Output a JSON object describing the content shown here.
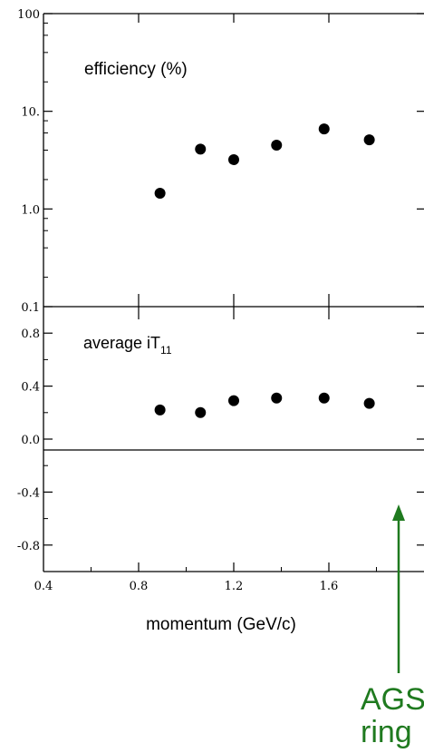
{
  "chart_data": [
    {
      "type": "scatter",
      "panel": "top",
      "label": "efficiency (%)",
      "yscale": "log",
      "ylim": [
        0.1,
        100
      ],
      "yticks": [
        "0.1",
        "1.0",
        "10.",
        "100"
      ],
      "xlim": [
        0.4,
        2.0
      ],
      "x": [
        0.89,
        1.06,
        1.2,
        1.38,
        1.58,
        1.77
      ],
      "y": [
        1.45,
        4.1,
        3.2,
        4.5,
        6.6,
        5.1
      ]
    },
    {
      "type": "scatter",
      "panel": "bottom",
      "label_main": "average iT",
      "label_sub": "11",
      "ylim": [
        -1.0,
        1.0
      ],
      "yticks": [
        "-0.8",
        "-0.4",
        "0.0",
        "0.4",
        "0.8"
      ],
      "xlim": [
        0.4,
        2.0
      ],
      "xticks": [
        "0.4",
        "0.8",
        "1.2",
        "1.6"
      ],
      "xlabel": "momentum  (GeV/c)",
      "x": [
        0.89,
        1.06,
        1.2,
        1.38,
        1.58,
        1.77
      ],
      "y": [
        0.22,
        0.2,
        0.29,
        0.31,
        0.31,
        0.27
      ]
    }
  ],
  "annotation": {
    "lines": [
      "AGS",
      "ring"
    ],
    "color": "#1f7a1f"
  }
}
